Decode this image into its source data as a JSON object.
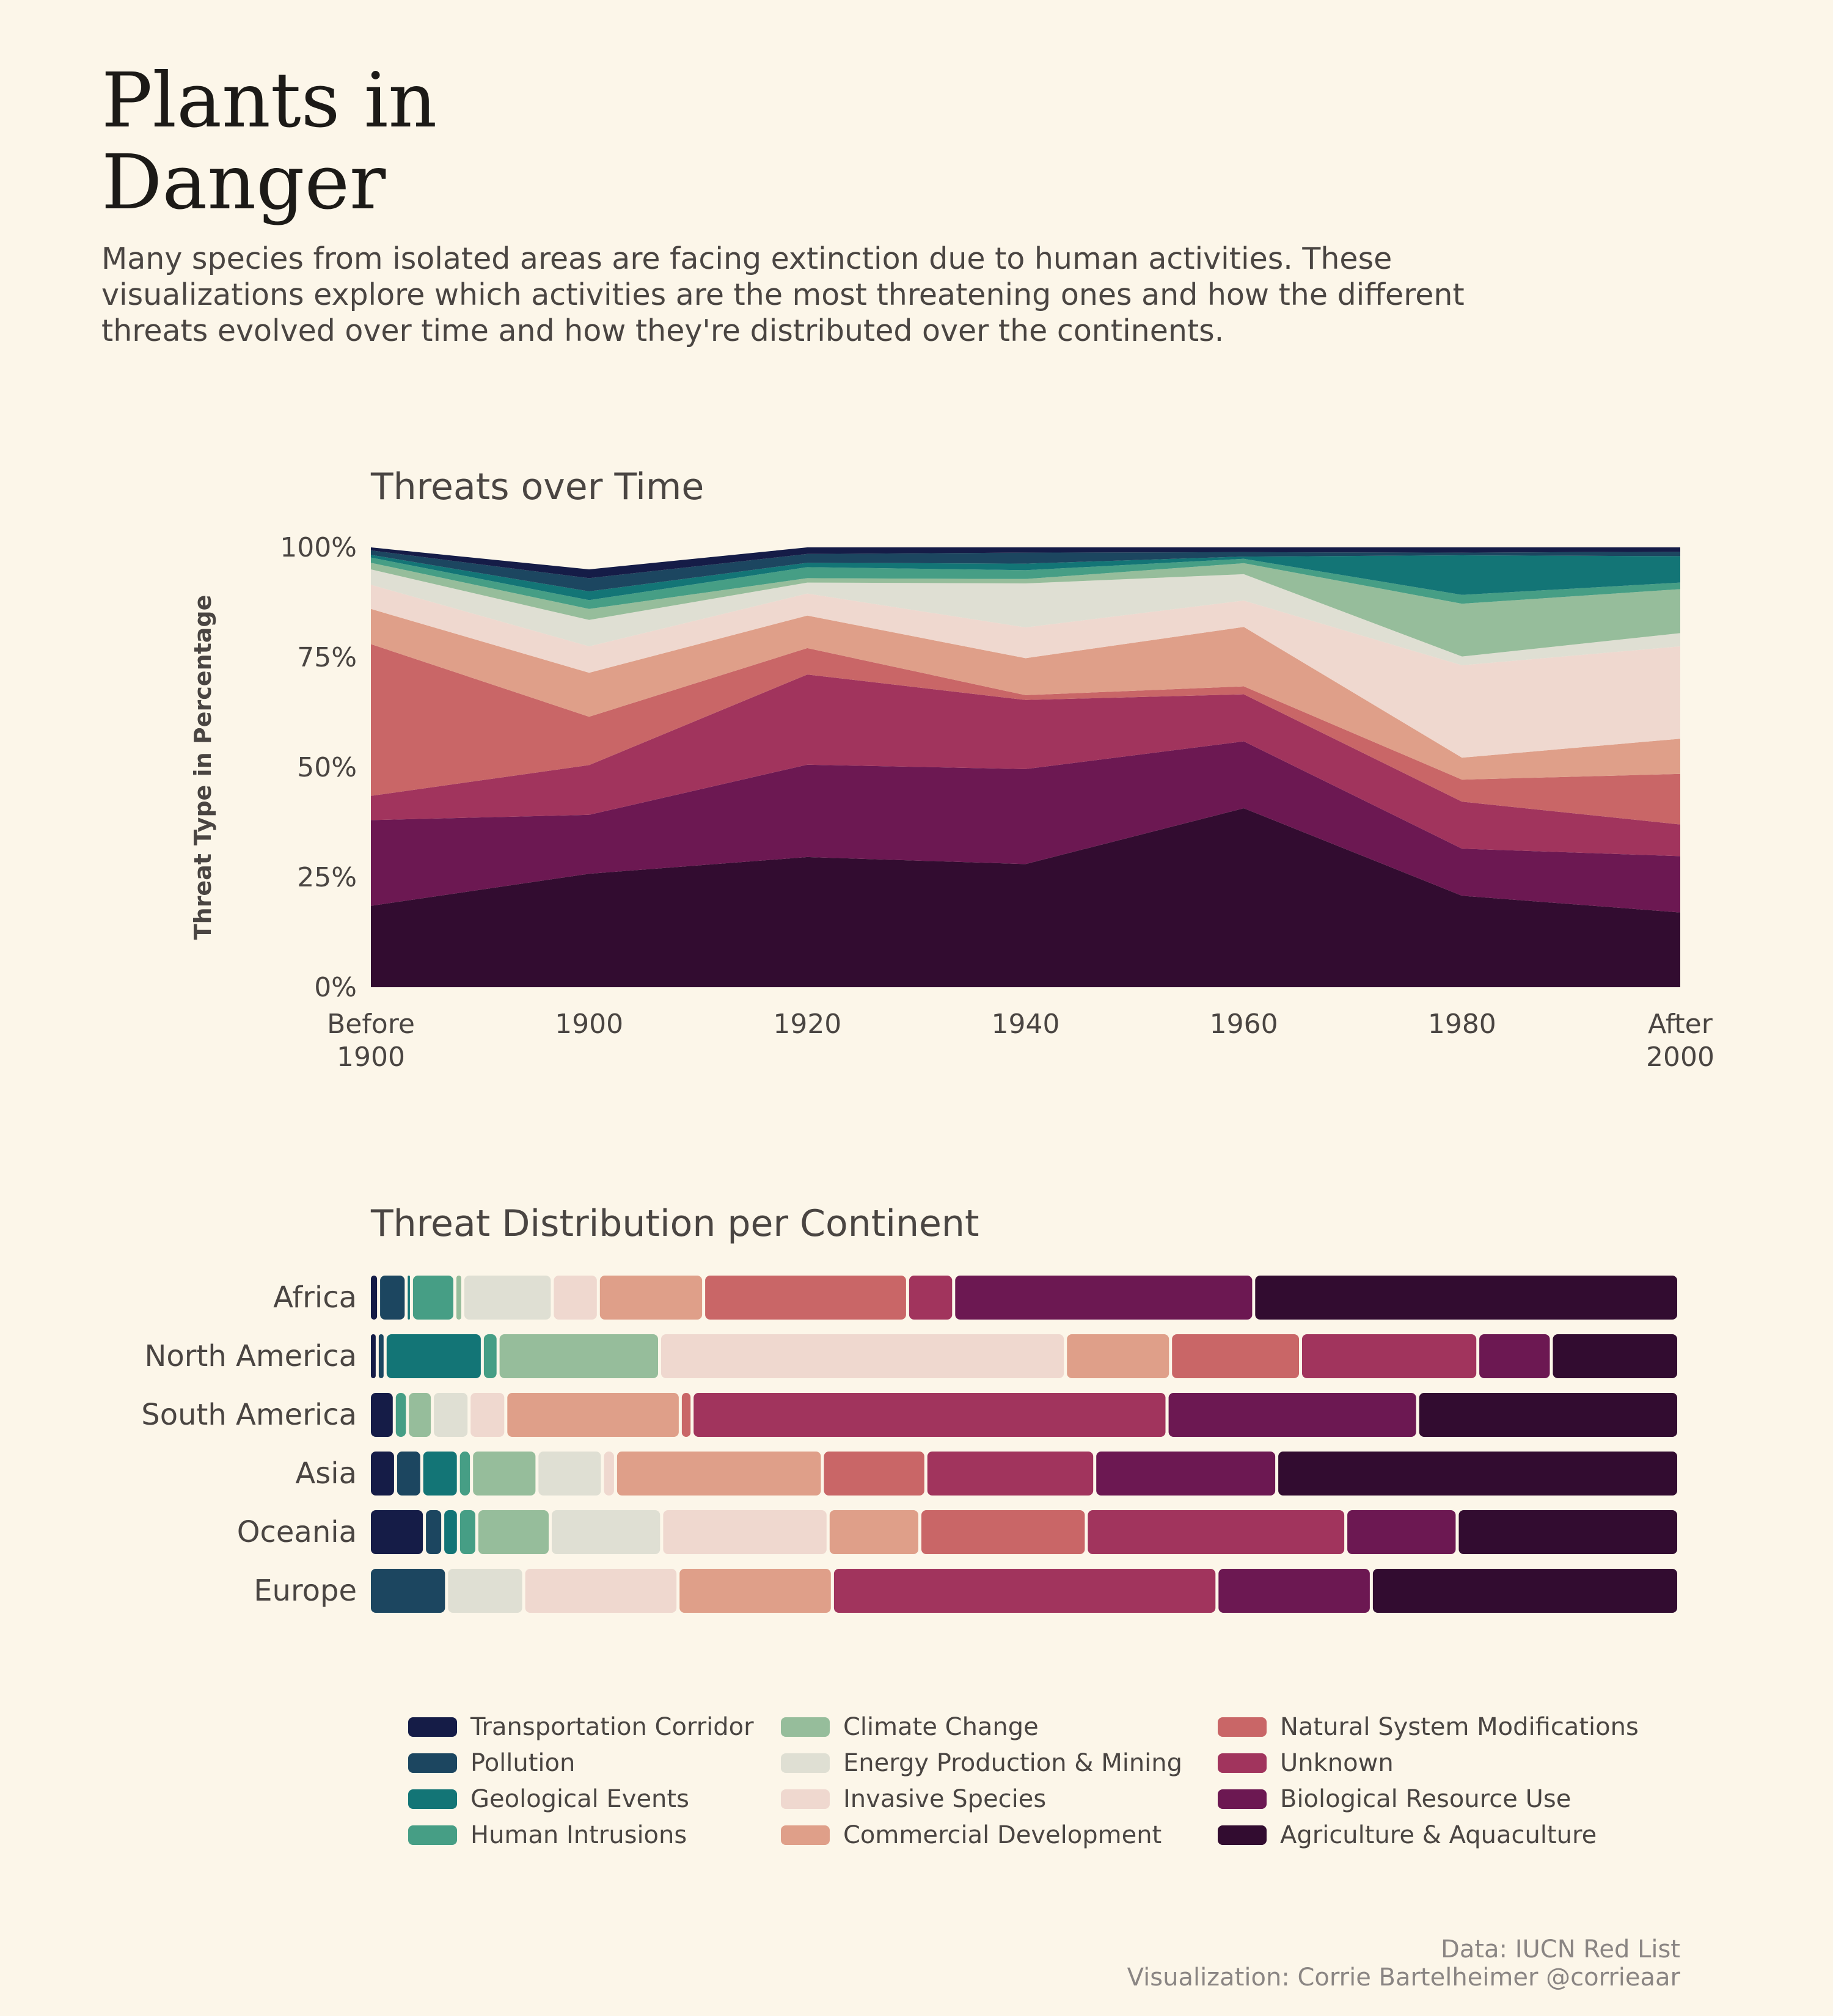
{
  "title_lines": [
    "Plants in",
    "Danger"
  ],
  "subtitle": "Many species from isolated areas are facing extinction due to human activities. These visualizations explore which activities are the most threatening ones and how the different threats evolved over time and how they're distributed over the continents.",
  "caption": {
    "line1": "Data: IUCN Red List",
    "line2": "Visualization: Corrie Bartelheimer @corrieaar"
  },
  "legend": {
    "items": [
      {
        "label": "Transportation Corridor",
        "color": "#151c47"
      },
      {
        "label": "Pollution",
        "color": "#1c4660"
      },
      {
        "label": "Geological Events",
        "color": "#137576"
      },
      {
        "label": "Human Intrusions",
        "color": "#469e85"
      },
      {
        "label": "Climate Change",
        "color": "#96bd9b"
      },
      {
        "label": "Energy Production & Mining",
        "color": "#dfdfd3"
      },
      {
        "label": "Invasive Species",
        "color": "#efd8cf"
      },
      {
        "label": "Commercial Development",
        "color": "#df9f89"
      },
      {
        "label": "Natural System Modifications",
        "color": "#c96667"
      },
      {
        "label": "Unknown",
        "color": "#a1345d"
      },
      {
        "label": "Biological Resource Use",
        "color": "#6c1852"
      },
      {
        "label": "Agriculture & Aquaculture",
        "color": "#320c30"
      }
    ]
  },
  "chart_data": [
    {
      "type": "area",
      "title": "Threats over Time",
      "ylabel": "Threat Type in Percentage",
      "xlabel": "",
      "ylim": [
        0,
        100
      ],
      "y_ticks": [
        "0%",
        "25%",
        "50%",
        "75%",
        "100%"
      ],
      "x": [
        [
          "Before",
          "1900"
        ],
        [
          "1900"
        ],
        [
          "1920"
        ],
        [
          "1940"
        ],
        [
          "1960"
        ],
        [
          "1980"
        ],
        [
          "After",
          "2000"
        ]
      ],
      "stacked": true,
      "series": [
        {
          "name": "Agriculture & Aquaculture",
          "color": "#320c30",
          "values": [
            18.5,
            25.8,
            29.6,
            28.0,
            40.7,
            20.8,
            17.0
          ]
        },
        {
          "name": "Biological Resource Use",
          "color": "#6c1852",
          "values": [
            19.5,
            13.4,
            21.0,
            21.6,
            15.2,
            10.7,
            12.8
          ]
        },
        {
          "name": "Unknown",
          "color": "#a1345d",
          "values": [
            5.5,
            11.3,
            20.5,
            15.7,
            10.7,
            10.7,
            7.2
          ]
        },
        {
          "name": "Natural System Modifications",
          "color": "#c96667",
          "values": [
            34.5,
            11.0,
            6.0,
            1.1,
            1.8,
            5.0,
            11.5
          ]
        },
        {
          "name": "Commercial Development",
          "color": "#df9f89",
          "values": [
            8.0,
            10.0,
            7.4,
            8.4,
            13.5,
            5.0,
            8.0
          ]
        },
        {
          "name": "Invasive Species",
          "color": "#efd8cf",
          "values": [
            5.5,
            6.0,
            5.0,
            7.0,
            6.0,
            21.0,
            21.0
          ]
        },
        {
          "name": "Energy Production & Mining",
          "color": "#dfdfd3",
          "values": [
            3.5,
            6.0,
            2.5,
            10.0,
            6.0,
            2.0,
            3.0
          ]
        },
        {
          "name": "Climate Change",
          "color": "#96bd9b",
          "values": [
            1.5,
            2.5,
            1.0,
            1.0,
            2.5,
            12.0,
            10.0
          ]
        },
        {
          "name": "Human Intrusions",
          "color": "#469e85",
          "values": [
            1.2,
            2.0,
            2.5,
            2.0,
            1.0,
            2.0,
            1.5
          ]
        },
        {
          "name": "Geological Events",
          "color": "#137576",
          "values": [
            0.6,
            2.0,
            1.0,
            1.5,
            0.5,
            9.0,
            6.0
          ]
        },
        {
          "name": "Pollution",
          "color": "#1c4660",
          "values": [
            1.0,
            3.0,
            2.0,
            2.5,
            1.0,
            0.6,
            1.0
          ]
        },
        {
          "name": "Transportation Corridor",
          "color": "#151c47",
          "values": [
            0.7,
            2.0,
            1.5,
            1.2,
            1.1,
            1.2,
            1.0
          ]
        }
      ]
    },
    {
      "type": "bar",
      "orientation": "horizontal",
      "stacked": true,
      "normalized": true,
      "title": "Threat Distribution per Continent",
      "xlabel": "",
      "ylabel": "",
      "categories": [
        "Africa",
        "North America",
        "South America",
        "Asia",
        "Oceania",
        "Europe"
      ],
      "series": [
        {
          "name": "Transportation Corridor",
          "color": "#151c47",
          "values": [
            0.7,
            0.6,
            1.9,
            2.0,
            4.2,
            0
          ]
        },
        {
          "name": "Pollution",
          "color": "#1c4660",
          "values": [
            2.1,
            0.6,
            0,
            2.0,
            1.4,
            5.9
          ]
        },
        {
          "name": "Geological Events",
          "color": "#137576",
          "values": [
            0.4,
            7.4,
            0,
            2.8,
            1.2,
            0
          ]
        },
        {
          "name": "Human Intrusions",
          "color": "#469e85",
          "values": [
            3.3,
            1.2,
            1.0,
            1.0,
            1.4,
            0
          ]
        },
        {
          "name": "Climate Change",
          "color": "#96bd9b",
          "values": [
            0.6,
            12.3,
            1.9,
            5.0,
            5.6,
            0
          ]
        },
        {
          "name": "Energy Production & Mining",
          "color": "#dfdfd3",
          "values": [
            6.8,
            0,
            2.8,
            5.0,
            8.5,
            5.9
          ]
        },
        {
          "name": "Invasive Species",
          "color": "#efd8cf",
          "values": [
            3.5,
            30.9,
            2.8,
            1.0,
            12.7,
            11.8
          ]
        },
        {
          "name": "Commercial Development",
          "color": "#df9f89",
          "values": [
            8.0,
            8.0,
            13.3,
            15.8,
            7.0,
            11.8
          ]
        },
        {
          "name": "Natural System Modifications",
          "color": "#c96667",
          "values": [
            15.5,
            9.9,
            0.9,
            7.9,
            12.7,
            0
          ]
        },
        {
          "name": "Unknown",
          "color": "#a1345d",
          "values": [
            3.5,
            13.5,
            36.2,
            12.9,
            19.8,
            29.4
          ]
        },
        {
          "name": "Biological Resource Use",
          "color": "#6c1852",
          "values": [
            22.8,
            5.6,
            19.1,
            13.9,
            8.5,
            11.8
          ]
        },
        {
          "name": "Agriculture & Aquaculture",
          "color": "#320c30",
          "values": [
            32.3,
            9.7,
            19.9,
            30.7,
            16.9,
            23.5
          ]
        }
      ]
    }
  ]
}
